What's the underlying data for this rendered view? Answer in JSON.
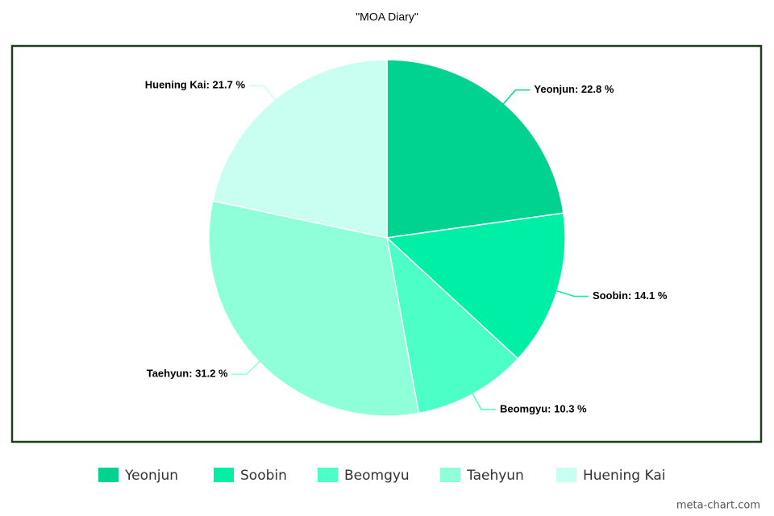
{
  "chart_data": {
    "type": "pie",
    "title": "\"MOA Diary\"",
    "categories": [
      "Yeonjun",
      "Soobin",
      "Beomgyu",
      "Taehyun",
      "Huening Kai"
    ],
    "values": [
      22.8,
      14.1,
      10.3,
      31.2,
      21.7
    ],
    "value_labels": [
      "Yeonjun: 22.8 %",
      "Soobin: 14.1 %",
      "Beomgyu: 10.3 %",
      "Taehyun: 31.2 %",
      "Huening Kai: 21.7 %"
    ],
    "colors": [
      "#00d390",
      "#00efa6",
      "#4cffc6",
      "#8effd8",
      "#c9fff0"
    ],
    "legend": "bottom",
    "credit": "meta-chart.com"
  }
}
